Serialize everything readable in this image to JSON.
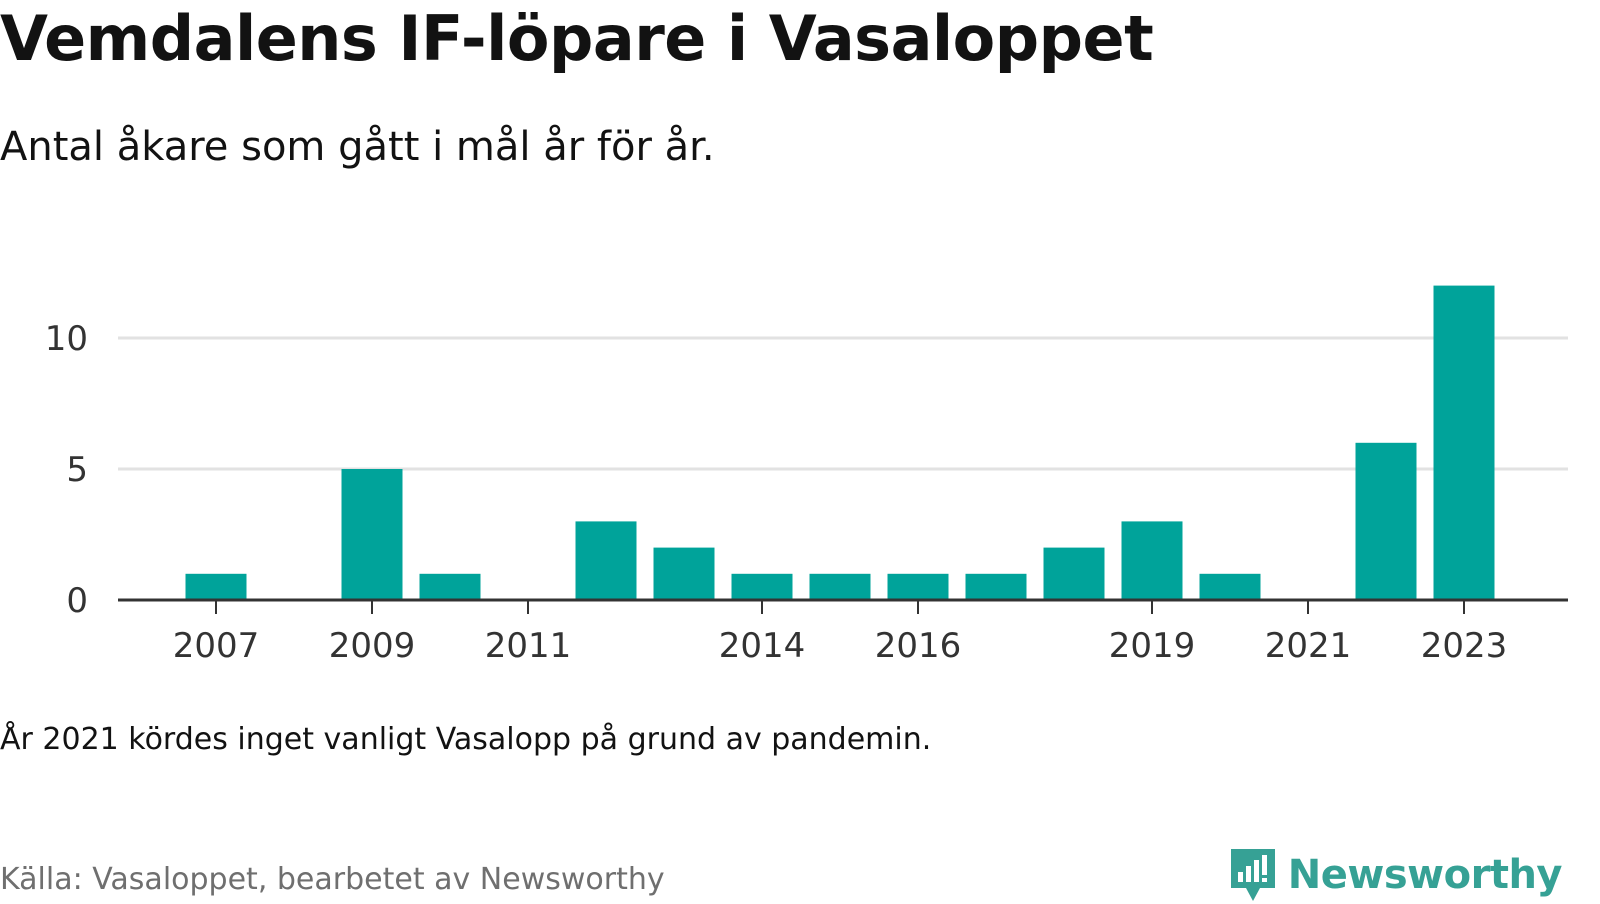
{
  "header": {
    "title": "Vemdalens IF-löpare i Vasaloppet",
    "subtitle": "Antal åkare som gått i mål år för år."
  },
  "footer": {
    "note": "År 2021 kördes inget vanligt Vasalopp på grund av pandemin.",
    "source": "Källa: Vasaloppet, bearbetet av Newsworthy",
    "logo_text": "Newsworthy",
    "logo_icon": "newsworthy-logo-icon"
  },
  "colors": {
    "bar": "#00a39a",
    "grid": "#e2e2e2",
    "axis": "#333333",
    "brand": "#36a195"
  },
  "chart_data": {
    "type": "bar",
    "categories": [
      "2007",
      "2008",
      "2009",
      "2010",
      "2011",
      "2012",
      "2013",
      "2014",
      "2015",
      "2016",
      "2017",
      "2018",
      "2019",
      "2020",
      "2021",
      "2022",
      "2023"
    ],
    "values": [
      1,
      0,
      5,
      1,
      0,
      3,
      2,
      1,
      1,
      1,
      1,
      2,
      3,
      1,
      0,
      6,
      12
    ],
    "x_tick_labels": [
      "2007",
      "2009",
      "2011",
      "2014",
      "2016",
      "2019",
      "2021",
      "2023"
    ],
    "y_ticks": [
      0,
      5,
      10
    ],
    "ylim": [
      0,
      12
    ],
    "xlabel": "",
    "ylabel": "",
    "grid": true,
    "legend": "none"
  }
}
